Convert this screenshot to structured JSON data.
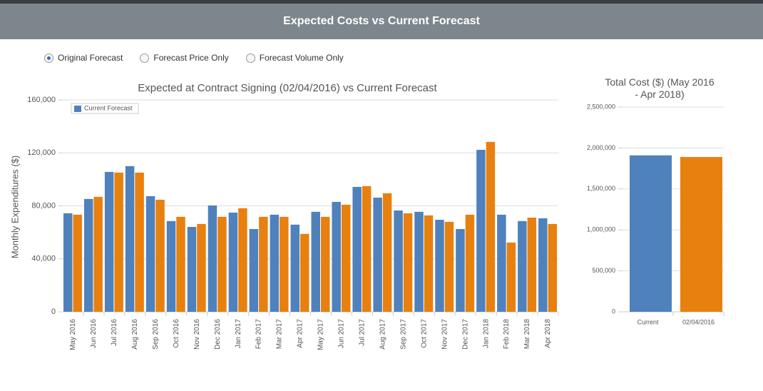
{
  "header": {
    "title": "Expected Costs vs Current Forecast"
  },
  "radio_options": [
    {
      "label": "Original Forecast",
      "selected": true
    },
    {
      "label": "Forecast Price Only",
      "selected": false
    },
    {
      "label": "Forecast Volume Only",
      "selected": false
    }
  ],
  "chart_data": [
    {
      "type": "bar",
      "title": "Expected at Contract Signing (02/04/2016) vs Current Forecast",
      "y_label": "Monthly Expenditures ($)",
      "categories": [
        "May 2016",
        "Jun 2016",
        "Jul 2016",
        "Aug 2016",
        "Sep 2016",
        "Oct 2016",
        "Nov 2016",
        "Dec 2016",
        "Jan 2017",
        "Feb 2017",
        "Mar 2017",
        "Apr 2017",
        "May 2017",
        "Jun 2017",
        "Jul 2017",
        "Aug 2017",
        "Sep 2017",
        "Oct 2017",
        "Nov 2017",
        "Dec 2017",
        "Jan 2018",
        "Feb 2018",
        "Mar 2018",
        "Apr 2018"
      ],
      "series": [
        {
          "name": "Current Forecast",
          "color": "#4f81bd",
          "values": [
            74400,
            85200,
            105600,
            110000,
            87300,
            68500,
            64100,
            80300,
            74900,
            62500,
            73300,
            65800,
            75500,
            83000,
            94300,
            86200,
            76500,
            75500,
            69500,
            62500,
            122300,
            73300,
            68500,
            70600
          ]
        },
        {
          "color": "#e8800f",
          "values": [
            73300,
            86800,
            105100,
            105100,
            84600,
            71700,
            66300,
            71700,
            78200,
            71700,
            71700,
            58800,
            71700,
            80900,
            94900,
            89500,
            74400,
            72800,
            67900,
            73300,
            128300,
            52300,
            71100,
            66300
          ]
        }
      ],
      "ylim": [
        0,
        160000
      ],
      "yticks": [
        0,
        {
          "value": 40000,
          "label": "40,000"
        },
        {
          "value": 80000,
          "label": "80,000"
        },
        {
          "value": 120000,
          "label": "120,000"
        },
        {
          "value": 160000,
          "label": "160,000"
        }
      ],
      "grid": true,
      "legend": "top-left"
    },
    {
      "type": "bar",
      "title": "Total Cost ($) (May 2016 - Apr 2018)",
      "categories": [
        "Current",
        "02/04/2016"
      ],
      "values": [
        1910000,
        1890000
      ],
      "colors": [
        "#4f81bd",
        "#e8800f"
      ],
      "ylim": [
        0,
        2500000
      ],
      "yticks": [
        0,
        {
          "value": 500000,
          "label": "500,000"
        },
        {
          "value": 1000000,
          "label": "1,000,000"
        },
        {
          "value": 1500000,
          "label": "1,500,000"
        },
        {
          "value": 2000000,
          "label": "2,000,000"
        },
        {
          "value": 2500000,
          "label": "2,500,000"
        }
      ],
      "grid": true
    }
  ]
}
